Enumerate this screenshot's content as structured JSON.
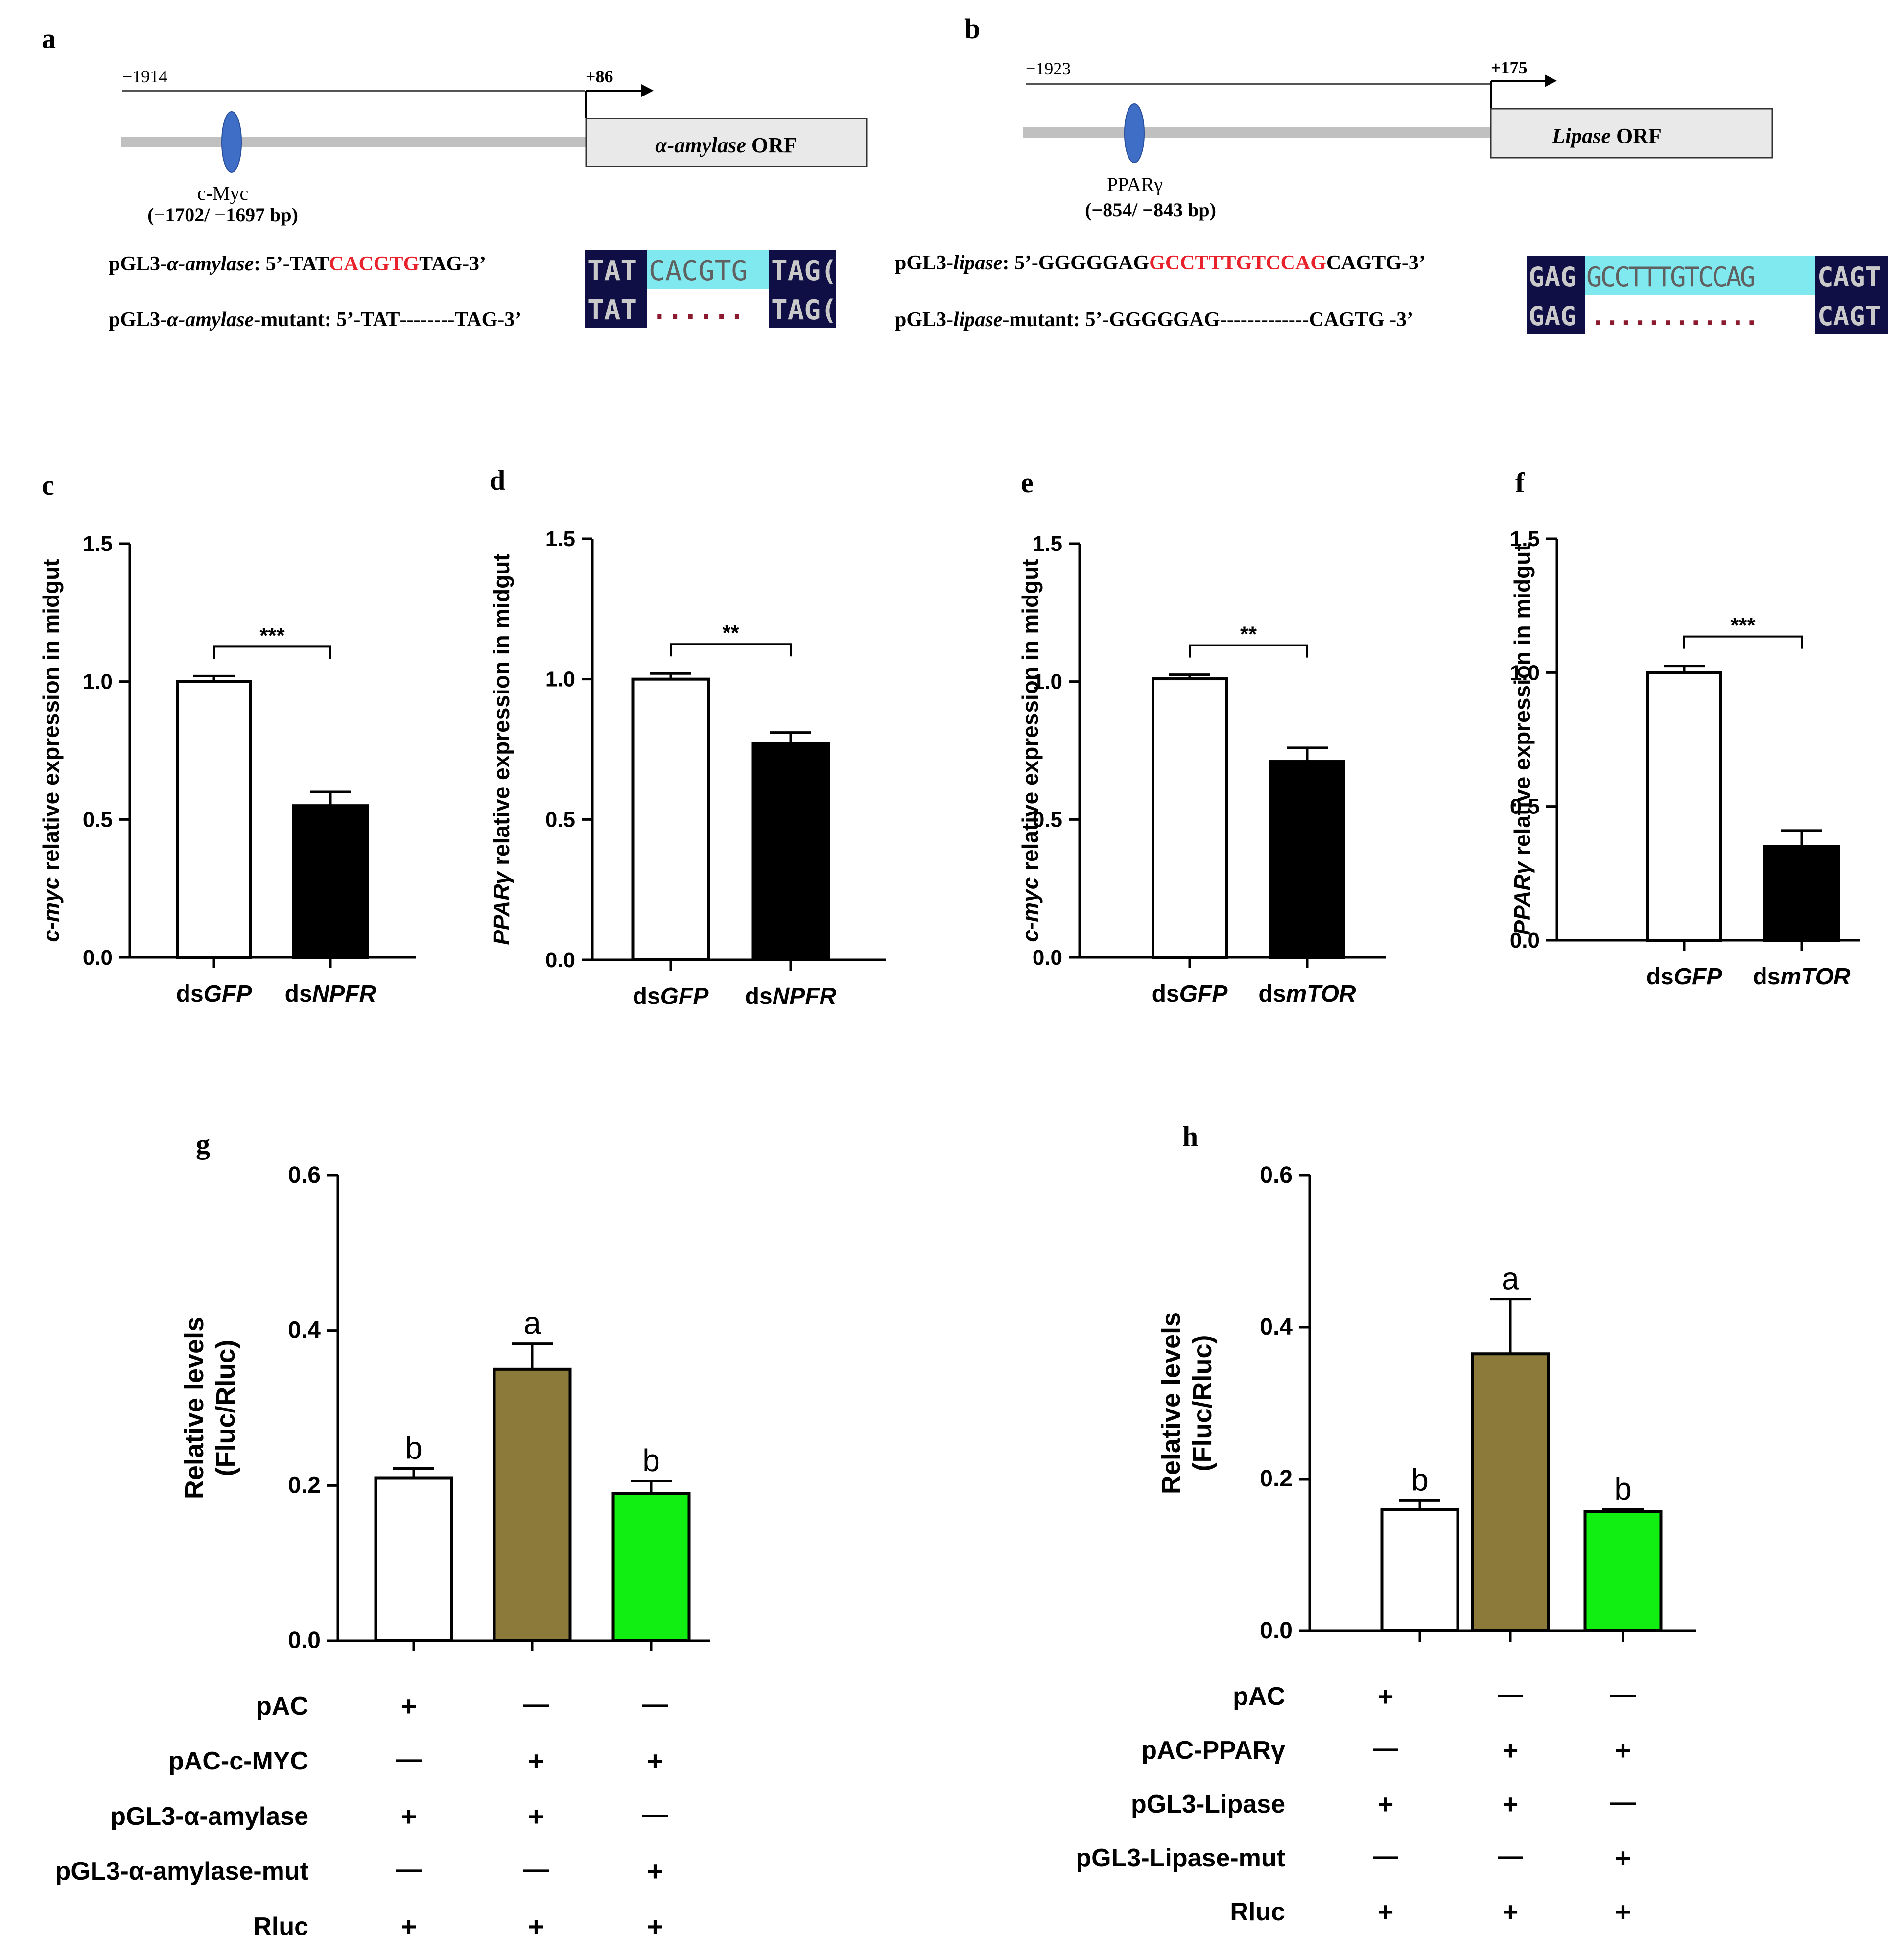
{
  "panels": {
    "a": {
      "letter": "a",
      "start_label": "−1914",
      "tss_label": "+86",
      "orf_gene": "α-amylase",
      "orf_suffix": " ORF",
      "tf_name": "c-Myc",
      "tf_range": "(−1702/ −1697 bp)",
      "wt_prefix": "pGL3-",
      "wt_gene": "α-amylase",
      "wt_seq_pre": ": 5’-TAT",
      "wt_seq_site": "CACGTG",
      "wt_seq_post": "TAG-3’",
      "mut_prefix": "pGL3-",
      "mut_gene": "α-amylase",
      "mut_seq_pre": "-mutant: 5’-TAT",
      "mut_dash": "--------",
      "mut_seq_post": "TAG-3’",
      "align": {
        "row1_left": "TAT",
        "row1_mid": "CACGTG",
        "row1_right": "TAG(",
        "row2_left": "TAT",
        "row2_dots": "......",
        "row2_right": "TAG("
      }
    },
    "b": {
      "letter": "b",
      "start_label": "−1923",
      "tss_label": "+175",
      "orf_gene": "Lipase",
      "orf_suffix": " ORF",
      "tf_name": "PPARγ",
      "tf_range": "(−854/ −843 bp)",
      "wt_prefix": "pGL3-",
      "wt_gene": "lipase",
      "wt_seq_pre": ": 5’-GGGGGAG",
      "wt_seq_site": "GCCTTTGTCCAG",
      "wt_seq_post": "CAGTG-3’",
      "mut_prefix": "pGL3-",
      "mut_gene": "lipase",
      "mut_seq_pre": "-mutant: 5’-GGGGGAG",
      "mut_dash": "-------------",
      "mut_seq_post": "CAGTG -3’",
      "align": {
        "row1_left": "GAG",
        "row1_mid": "GCCTTTGTCCAG",
        "row1_right": "CAGT",
        "row2_left": "GAG",
        "row2_dots": "............",
        "row2_right": "CAGT"
      }
    }
  },
  "colors": {
    "site_red": "#e8212b",
    "promoter_grey": "#c0c0c0",
    "orf_fill": "#e9e9e9",
    "tf_blue": "#3e6ec6",
    "align_dark": "#0f0f45",
    "align_cyan": "#7fe9ef",
    "align_text": "#c9c9c9",
    "olive": "#8b7a3a",
    "green": "#11ee11"
  },
  "chart_data": [
    {
      "panel": "c",
      "type": "bar",
      "ylabel_gene": "c-myc",
      "ylabel_rest": " relative expression in midgut",
      "categories": [
        {
          "pre": "ds",
          "gene": "GFP"
        },
        {
          "pre": "ds",
          "gene": "NPFR"
        }
      ],
      "values": [
        1.0,
        0.55
      ],
      "errors": [
        0.02,
        0.05
      ],
      "fills": [
        "#ffffff",
        "#000000"
      ],
      "ylim": [
        0,
        1.5
      ],
      "yticks": [
        0.0,
        0.5,
        1.0,
        1.5
      ],
      "tick_labels": [
        "0.0",
        "0.5",
        "1.0",
        "1.5"
      ],
      "significance": "***"
    },
    {
      "panel": "d",
      "type": "bar",
      "ylabel_gene": "PPARγ",
      "ylabel_rest": " relative expression in midgut",
      "categories": [
        {
          "pre": "ds",
          "gene": "GFP"
        },
        {
          "pre": "ds",
          "gene": "NPFR"
        }
      ],
      "values": [
        1.0,
        0.77
      ],
      "errors": [
        0.02,
        0.04
      ],
      "fills": [
        "#ffffff",
        "#000000"
      ],
      "ylim": [
        0,
        1.5
      ],
      "yticks": [
        0.0,
        0.5,
        1.0,
        1.5
      ],
      "tick_labels": [
        "0.0",
        "0.5",
        "1.0",
        "1.5"
      ],
      "significance": "**"
    },
    {
      "panel": "e",
      "type": "bar",
      "ylabel_gene": "c-myc",
      "ylabel_rest": " relative expression in midgut",
      "categories": [
        {
          "pre": "ds",
          "gene": "GFP"
        },
        {
          "pre": "ds",
          "gene": "mTOR"
        }
      ],
      "values": [
        1.01,
        0.71
      ],
      "errors": [
        0.015,
        0.05
      ],
      "fills": [
        "#ffffff",
        "#000000"
      ],
      "ylim": [
        0,
        1.5
      ],
      "yticks": [
        0.0,
        0.5,
        1.0,
        1.5
      ],
      "tick_labels": [
        "0.0",
        "0.5",
        "1.0",
        "1.5"
      ],
      "significance": "**"
    },
    {
      "panel": "f",
      "type": "bar",
      "ylabel_gene": "PPARγ",
      "ylabel_rest": " relative expression in midgut",
      "categories": [
        {
          "pre": "ds",
          "gene": "GFP"
        },
        {
          "pre": "ds",
          "gene": "mTOR"
        }
      ],
      "values": [
        1.0,
        0.35
      ],
      "errors": [
        0.025,
        0.06
      ],
      "fills": [
        "#ffffff",
        "#000000"
      ],
      "ylim": [
        0,
        1.5
      ],
      "yticks": [
        0.0,
        0.5,
        1.0,
        1.5
      ],
      "tick_labels": [
        "0.0",
        "0.5",
        "1.0",
        "1.5"
      ],
      "significance": "***"
    },
    {
      "panel": "g",
      "type": "bar",
      "ylabel_line1": "Relative levels",
      "ylabel_line2": "(Fluc/Rluc)",
      "values": [
        0.21,
        0.35,
        0.19
      ],
      "errors": [
        0.012,
        0.033,
        0.016
      ],
      "fills": [
        "#ffffff",
        "#8b7a3a",
        "#11ee11"
      ],
      "letters": [
        "b",
        "a",
        "b"
      ],
      "ylim": [
        0,
        0.6
      ],
      "yticks": [
        0.0,
        0.2,
        0.4,
        0.6
      ],
      "tick_labels": [
        "0.0",
        "0.2",
        "0.4",
        "0.6"
      ],
      "conditions": [
        {
          "label": "pAC",
          "marks": [
            "+",
            "—",
            "—"
          ]
        },
        {
          "label": "pAC-c-MYC",
          "marks": [
            "—",
            "+",
            "+"
          ]
        },
        {
          "label": "pGL3-α-amylase",
          "marks": [
            "+",
            "+",
            "—"
          ]
        },
        {
          "label": "pGL3-α-amylase-mut",
          "marks": [
            "—",
            "—",
            "+"
          ]
        },
        {
          "label": "Rluc",
          "marks": [
            "+",
            "+",
            "+"
          ]
        }
      ]
    },
    {
      "panel": "h",
      "type": "bar",
      "ylabel_line1": "Relative levels",
      "ylabel_line2": "(Fluc/Rluc)",
      "values": [
        0.16,
        0.365,
        0.157
      ],
      "errors": [
        0.012,
        0.072,
        0.003
      ],
      "fills": [
        "#ffffff",
        "#8b7a3a",
        "#11ee11"
      ],
      "letters": [
        "b",
        "a",
        "b"
      ],
      "ylim": [
        0,
        0.6
      ],
      "yticks": [
        0.0,
        0.2,
        0.4,
        0.6
      ],
      "tick_labels": [
        "0.0",
        "0.2",
        "0.4",
        "0.6"
      ],
      "conditions": [
        {
          "label": "pAC",
          "marks": [
            "+",
            "—",
            "—"
          ]
        },
        {
          "label": "pAC-PPARγ",
          "marks": [
            "—",
            "+",
            "+"
          ]
        },
        {
          "label": "pGL3-Lipase",
          "marks": [
            "+",
            "+",
            "—"
          ]
        },
        {
          "label": "pGL3-Lipase-mut",
          "marks": [
            "—",
            "—",
            "+"
          ]
        },
        {
          "label": "Rluc",
          "marks": [
            "+",
            "+",
            "+"
          ]
        }
      ]
    }
  ]
}
